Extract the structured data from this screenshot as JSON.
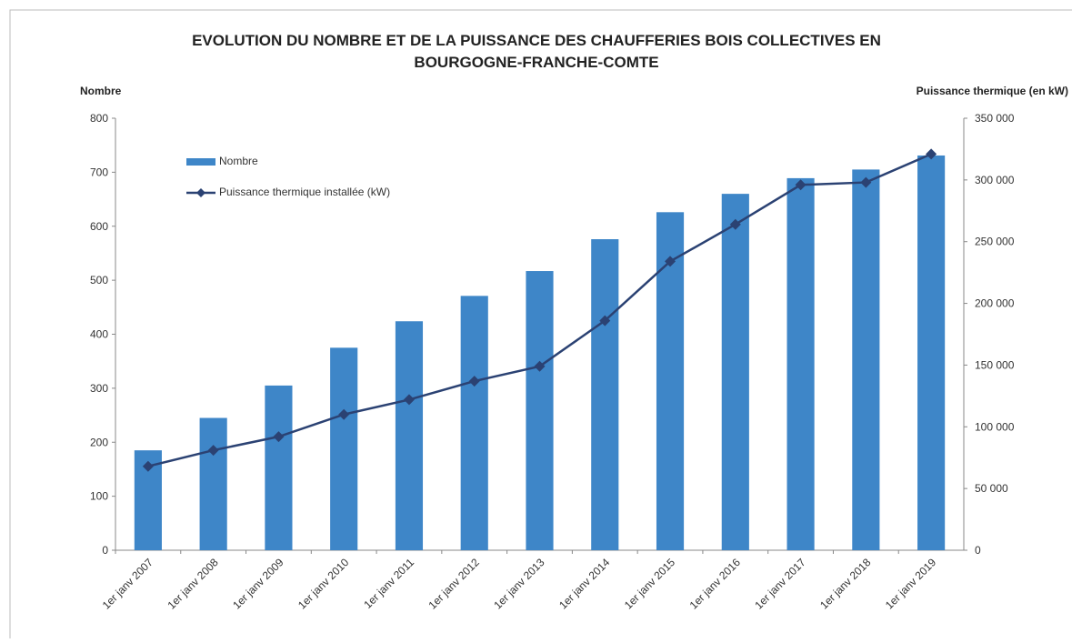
{
  "chart_data": {
    "type": "bar-line",
    "title": [
      "EVOLUTION DU NOMBRE ET DE LA PUISSANCE DES CHAUFFERIES BOIS COLLECTIVES EN",
      "BOURGOGNE-FRANCHE-COMTE"
    ],
    "ylabel": "Nombre",
    "y2label": "Puissance thermique (en kW)",
    "categories": [
      "1er janv 2007",
      "1er janv 2008",
      "1er janv 2009",
      "1er janv 2010",
      "1er janv 2011",
      "1er janv 2012",
      "1er janv 2013",
      "1er janv 2014",
      "1er janv 2015",
      "1er janv 2016",
      "1er janv 2017",
      "1er janv 2018",
      "1er janv 2019"
    ],
    "series": [
      {
        "name": "Nombre",
        "kind": "bar",
        "color": "#3e86c8",
        "values": [
          185,
          245,
          305,
          375,
          424,
          471,
          517,
          576,
          626,
          660,
          689,
          705,
          731
        ]
      },
      {
        "name": "Puissance thermique installée (kW)",
        "kind": "line",
        "axis": "y2",
        "color": "#2b4273",
        "values": [
          68000,
          81000,
          92000,
          110000,
          122000,
          137000,
          149000,
          186000,
          234000,
          264000,
          296000,
          298000,
          321000
        ]
      }
    ],
    "ylim": [
      0,
      800
    ],
    "yticks": [
      0,
      100,
      200,
      300,
      400,
      500,
      600,
      700,
      800
    ],
    "y2lim": [
      0,
      350000
    ],
    "y2ticks": [
      0,
      {
        "value": 50000,
        "label": "50 000"
      },
      {
        "value": 100000,
        "label": "100 000"
      },
      {
        "value": 150000,
        "label": "150 000"
      },
      {
        "value": 200000,
        "label": "200 000"
      },
      {
        "value": 250000,
        "label": "250 000"
      },
      {
        "value": 300000,
        "label": "300 000"
      },
      {
        "value": 350000,
        "label": "350 000"
      }
    ]
  }
}
